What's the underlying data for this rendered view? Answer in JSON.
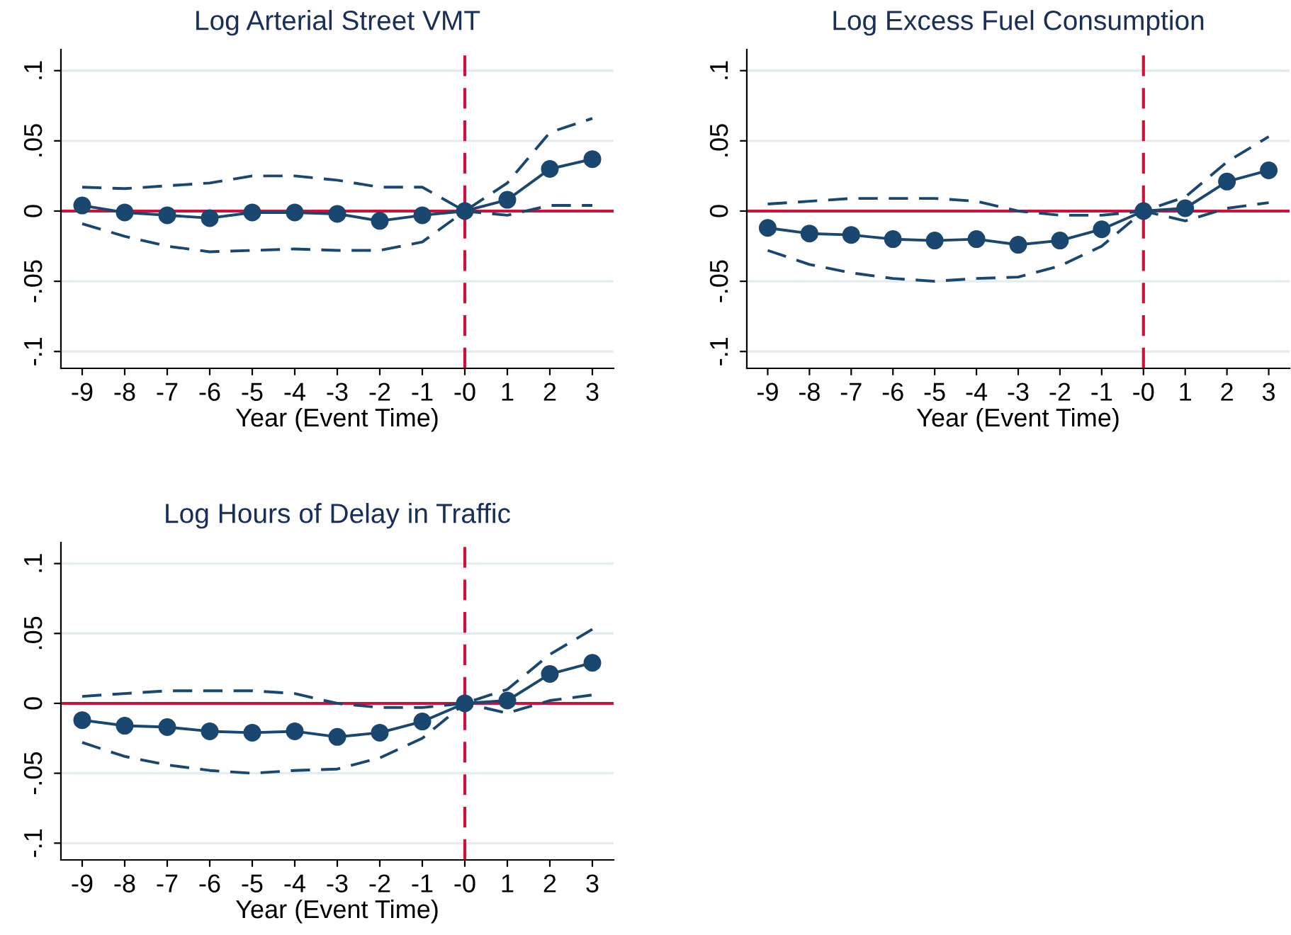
{
  "chart_data": [
    {
      "type": "line",
      "title": "Log Arterial Street VMT",
      "xlabel": "Year (Event Time)",
      "categories": [
        "-9",
        "-8",
        "-7",
        "-6",
        "-5",
        "-4",
        "-3",
        "-2",
        "-1",
        "-0",
        "1",
        "2",
        "3"
      ],
      "ylim": [
        -0.112,
        0.115
      ],
      "yticks": [
        {
          "value": -0.1,
          "label": "-.1"
        },
        {
          "value": -0.05,
          "label": "-.05"
        },
        0,
        {
          "value": 0.05,
          "label": ".05"
        },
        {
          "value": 0.1,
          "label": ".1"
        }
      ],
      "grid": "y",
      "series": [
        {
          "color": "#1a476f",
          "marker": "circle",
          "line_style": "solid",
          "values": [
            0.004,
            -0.001,
            -0.003,
            -0.005,
            -0.001,
            -0.001,
            -0.002,
            -0.007,
            -0.003,
            0,
            0.008,
            0.03,
            0.037
          ]
        },
        {
          "color": "#1a476f",
          "marker": "none",
          "line_style": "dashed",
          "values": [
            0.017,
            0.016,
            0.018,
            0.02,
            0.025,
            0.025,
            0.022,
            0.017,
            0.017,
            0,
            0.02,
            0.056,
            0.066
          ]
        },
        {
          "color": "#1a476f",
          "marker": "none",
          "line_style": "dashed",
          "values": [
            -0.009,
            -0.018,
            -0.025,
            -0.029,
            -0.028,
            -0.027,
            -0.028,
            -0.028,
            -0.022,
            0,
            -0.003,
            0.004,
            0.004
          ]
        }
      ],
      "ref_lines": [
        {
          "axis": "y",
          "value": 0,
          "color": "#d0103a",
          "line_style": "solid"
        },
        {
          "axis": "x",
          "value": "-0",
          "color": "#d0103a",
          "line_style": "dashed"
        }
      ]
    },
    {
      "type": "line",
      "title": "Log Excess Fuel Consumption",
      "xlabel": "Year (Event Time)",
      "categories": [
        "-9",
        "-8",
        "-7",
        "-6",
        "-5",
        "-4",
        "-3",
        "-2",
        "-1",
        "-0",
        "1",
        "2",
        "3"
      ],
      "ylim": [
        -0.112,
        0.115
      ],
      "yticks": [
        {
          "value": -0.1,
          "label": "-.1"
        },
        {
          "value": -0.05,
          "label": "-.05"
        },
        0,
        {
          "value": 0.05,
          "label": ".05"
        },
        {
          "value": 0.1,
          "label": ".1"
        }
      ],
      "grid": "y",
      "series": [
        {
          "color": "#1a476f",
          "marker": "circle",
          "line_style": "solid",
          "values": [
            -0.012,
            -0.016,
            -0.017,
            -0.02,
            -0.021,
            -0.02,
            -0.024,
            -0.021,
            -0.013,
            0,
            0.002,
            0.021,
            0.029
          ]
        },
        {
          "color": "#1a476f",
          "marker": "none",
          "line_style": "dashed",
          "values": [
            0.005,
            0.007,
            0.009,
            0.009,
            0.009,
            0.007,
            0,
            -0.003,
            -0.003,
            0,
            0.01,
            0.035,
            0.053
          ]
        },
        {
          "color": "#1a476f",
          "marker": "none",
          "line_style": "dashed",
          "values": [
            -0.028,
            -0.038,
            -0.044,
            -0.048,
            -0.05,
            -0.048,
            -0.047,
            -0.039,
            -0.025,
            0,
            -0.007,
            0.002,
            0.006
          ]
        }
      ],
      "ref_lines": [
        {
          "axis": "y",
          "value": 0,
          "color": "#d0103a",
          "line_style": "solid"
        },
        {
          "axis": "x",
          "value": "-0",
          "color": "#d0103a",
          "line_style": "dashed"
        }
      ]
    },
    {
      "type": "line",
      "title": "Log Hours of Delay in Traffic",
      "xlabel": "Year (Event Time)",
      "categories": [
        "-9",
        "-8",
        "-7",
        "-6",
        "-5",
        "-4",
        "-3",
        "-2",
        "-1",
        "-0",
        "1",
        "2",
        "3"
      ],
      "ylim": [
        -0.112,
        0.115
      ],
      "yticks": [
        {
          "value": -0.1,
          "label": "-.1"
        },
        {
          "value": -0.05,
          "label": "-.05"
        },
        0,
        {
          "value": 0.05,
          "label": ".05"
        },
        {
          "value": 0.1,
          "label": ".1"
        }
      ],
      "grid": "y",
      "series": [
        {
          "color": "#1a476f",
          "marker": "circle",
          "line_style": "solid",
          "values": [
            -0.012,
            -0.016,
            -0.017,
            -0.02,
            -0.021,
            -0.02,
            -0.024,
            -0.021,
            -0.013,
            0,
            0.002,
            0.021,
            0.029
          ]
        },
        {
          "color": "#1a476f",
          "marker": "none",
          "line_style": "dashed",
          "values": [
            0.005,
            0.007,
            0.009,
            0.009,
            0.009,
            0.007,
            0,
            -0.003,
            -0.003,
            0,
            0.01,
            0.035,
            0.053
          ]
        },
        {
          "color": "#1a476f",
          "marker": "none",
          "line_style": "dashed",
          "values": [
            -0.028,
            -0.038,
            -0.044,
            -0.048,
            -0.05,
            -0.048,
            -0.047,
            -0.039,
            -0.025,
            0,
            -0.007,
            0.002,
            0.006
          ]
        }
      ],
      "ref_lines": [
        {
          "axis": "y",
          "value": 0,
          "color": "#d0103a",
          "line_style": "solid"
        },
        {
          "axis": "x",
          "value": "-0",
          "color": "#d0103a",
          "line_style": "dashed"
        }
      ]
    }
  ]
}
